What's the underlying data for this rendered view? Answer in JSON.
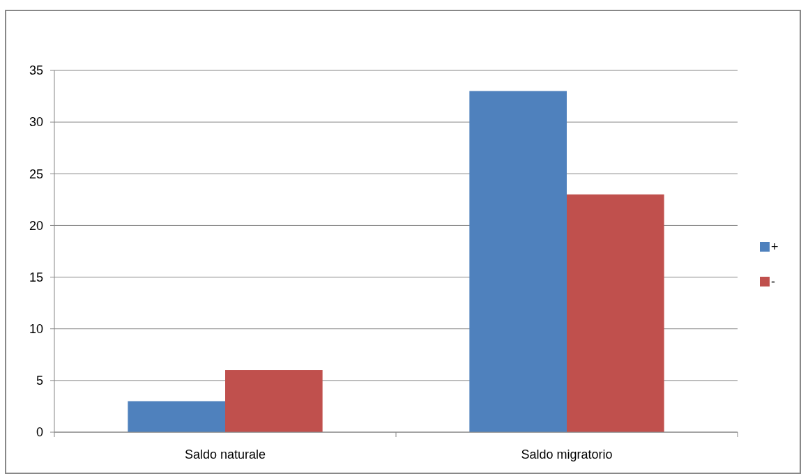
{
  "chart_data": {
    "type": "bar",
    "categories": [
      "Saldo naturale",
      "Saldo migratorio"
    ],
    "series": [
      {
        "name": "+",
        "color": "#4f81bd",
        "values": [
          3,
          33
        ]
      },
      {
        "name": "-",
        "color": "#c0504d",
        "values": [
          6,
          23
        ]
      }
    ],
    "ylim": [
      0,
      35
    ],
    "yticks": [
      0,
      5,
      10,
      15,
      20,
      25,
      30,
      35
    ],
    "grid": "y",
    "legend": "right"
  }
}
